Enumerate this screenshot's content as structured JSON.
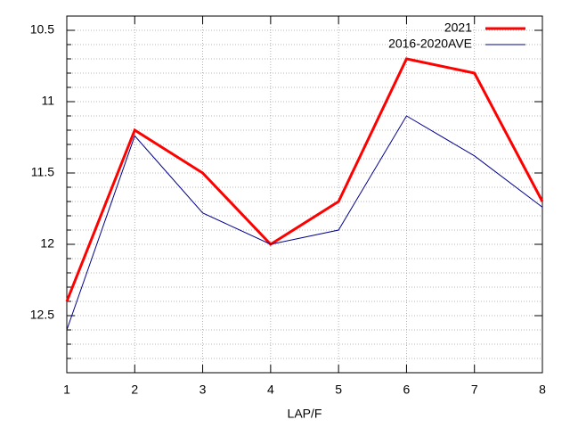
{
  "chart_data": {
    "type": "line",
    "x_label": "LAP/F",
    "x": [
      1,
      2,
      3,
      4,
      5,
      6,
      7,
      8
    ],
    "series": [
      {
        "name": "2021",
        "color": "#ff0000",
        "values": [
          12.4,
          11.2,
          11.5,
          12.0,
          11.7,
          10.7,
          10.8,
          11.7
        ]
      },
      {
        "name": "2016-2020AVE",
        "color": "#00008b",
        "values": [
          12.6,
          11.24,
          11.78,
          12.0,
          11.9,
          11.1,
          11.38,
          11.74
        ]
      }
    ],
    "xlim": [
      1,
      8
    ],
    "xticks": [
      1,
      2,
      3,
      4,
      5,
      6,
      7,
      8
    ],
    "ylim": [
      10.4,
      12.9
    ],
    "yticks": [
      10.5,
      11,
      11.5,
      12,
      12.5
    ],
    "yminorticks": [
      10.6,
      10.7,
      10.8,
      10.9,
      11.1,
      11.2,
      11.3,
      11.4,
      11.6,
      11.7,
      11.8,
      11.9,
      12.1,
      12.2,
      12.3,
      12.4,
      12.6,
      12.7,
      12.8
    ],
    "y_reversed": true,
    "grid": true,
    "legend": "top-right"
  }
}
